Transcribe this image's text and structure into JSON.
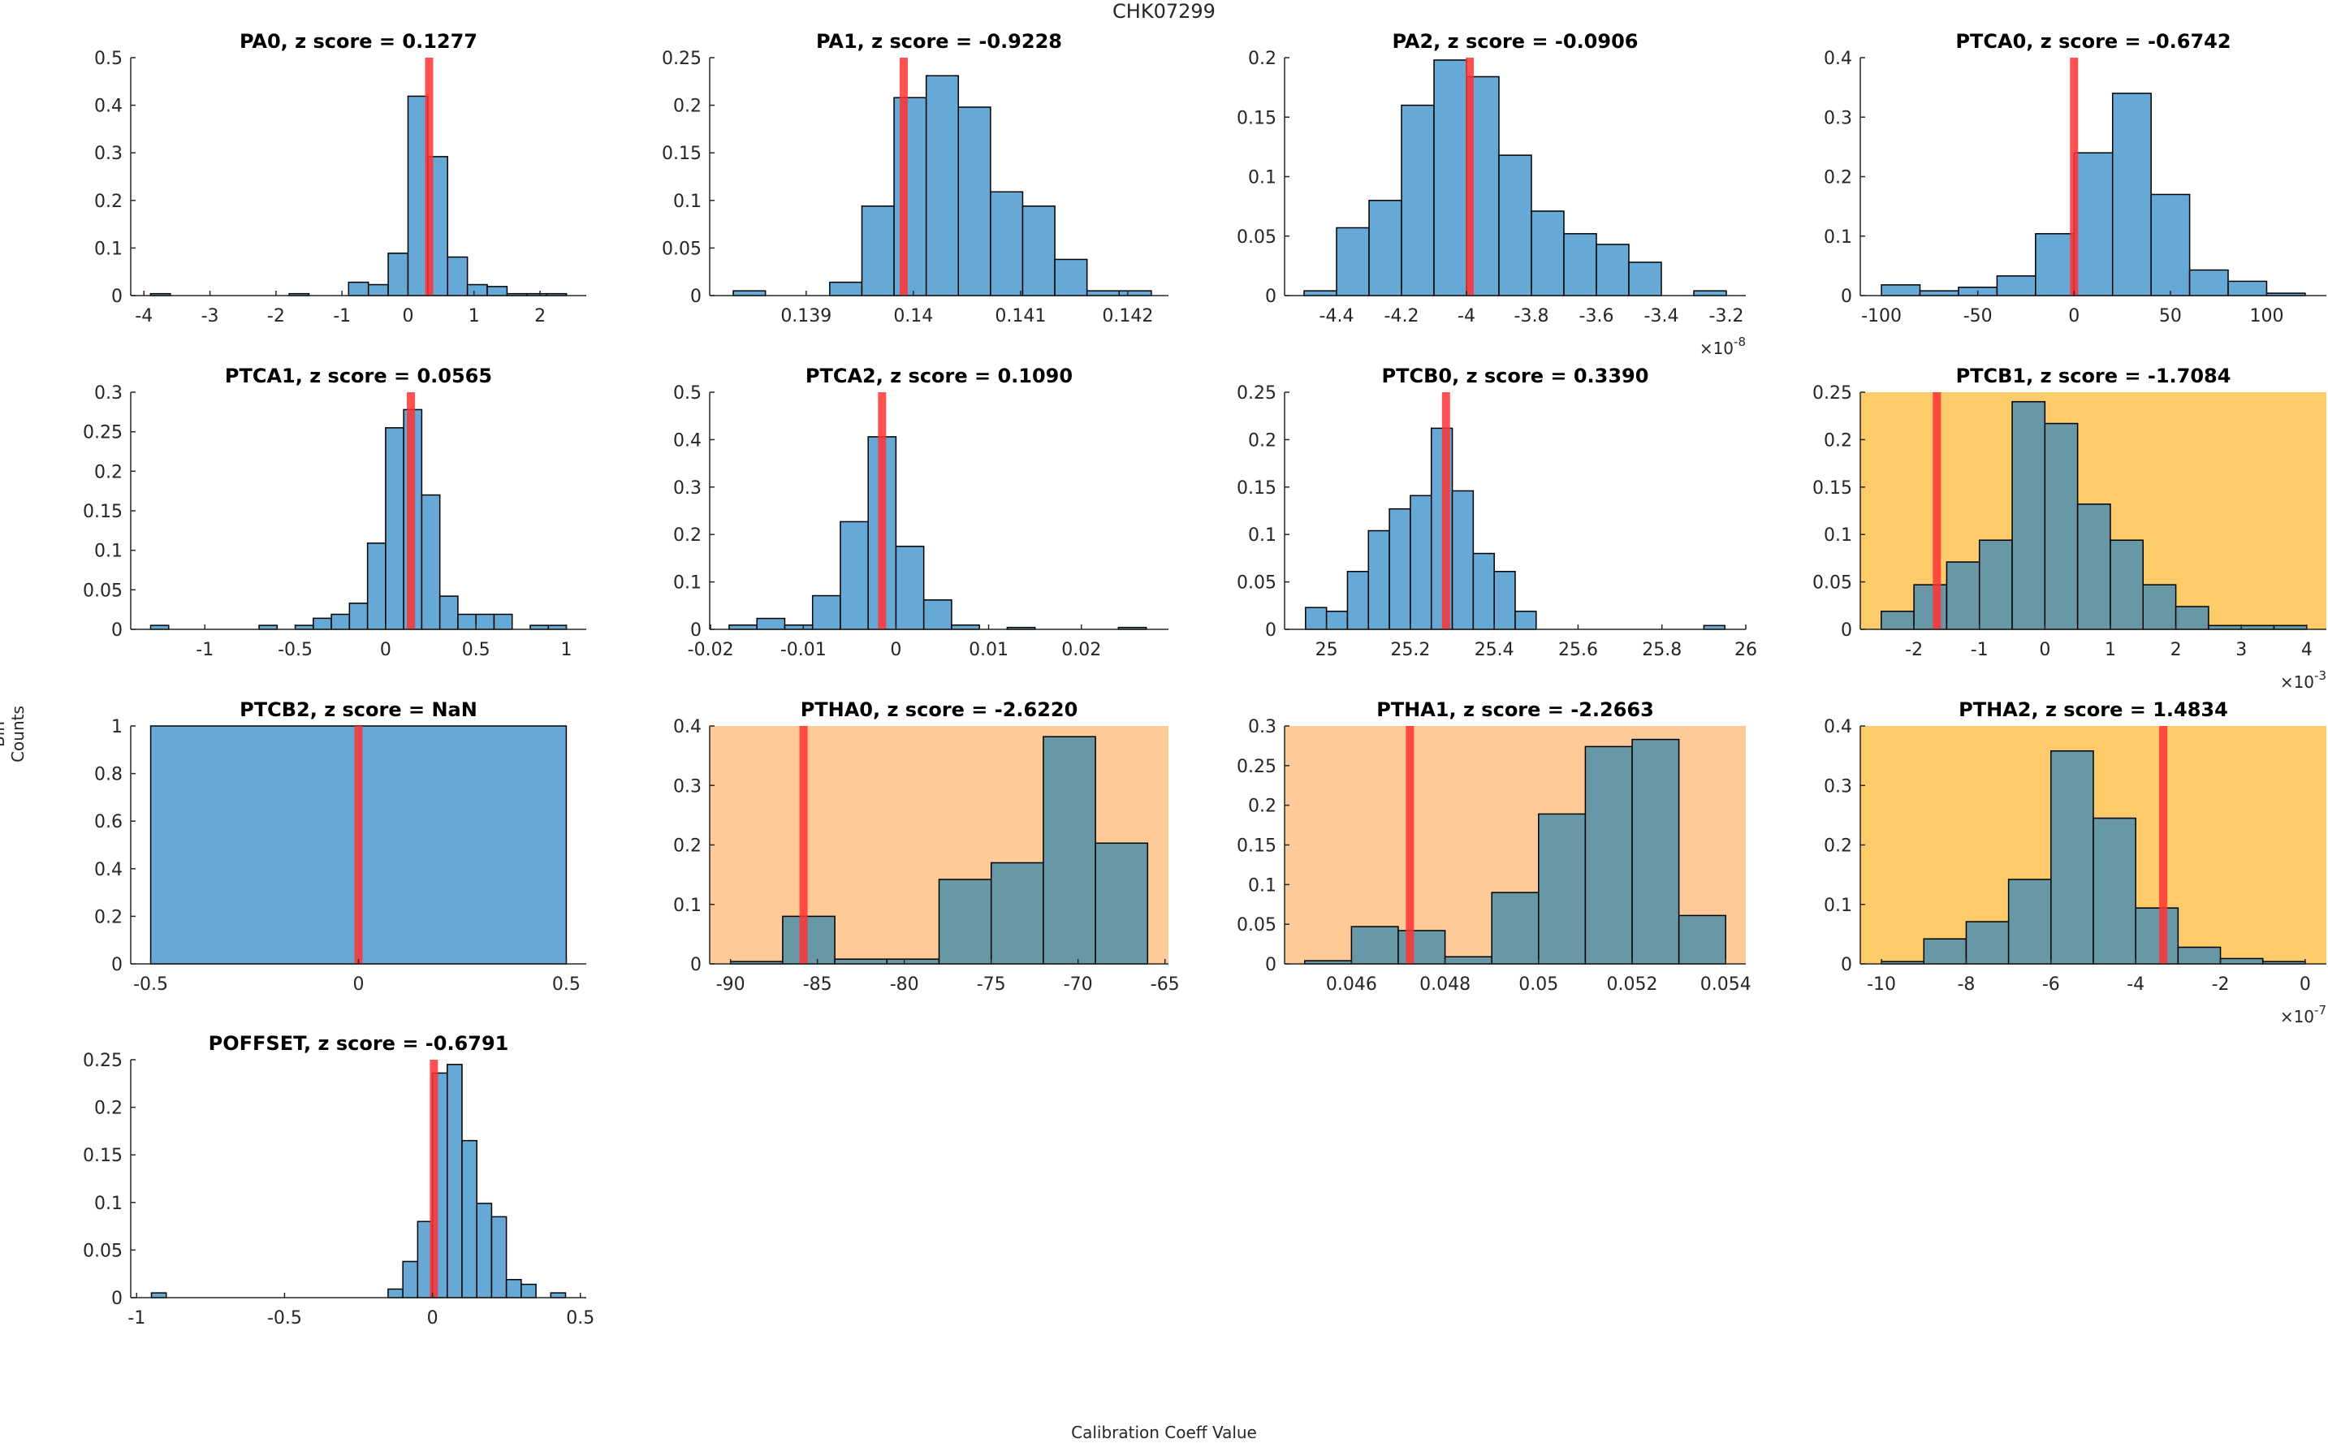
{
  "figure": {
    "suptitle": "CHK07299",
    "xlabel": "Calibration Coeff Value",
    "ylabel": "Bin Counts",
    "colors": {
      "bar_default": "#66a9d6",
      "bar_on_highlight": "#6897a6",
      "bar_edge": "#000000",
      "marker_line": "#ff3333",
      "highlight_orange_light": "#fdca98",
      "highlight_orange_yellow": "#fdcb6a"
    }
  },
  "chart_data": [
    {
      "type": "bar",
      "title": "PA0, z score = 0.1277",
      "param": "PA0",
      "z_score": "0.1277",
      "highlight": "none",
      "bin_edges": [
        -3.9,
        -3.6,
        -3.3,
        -3.0,
        -2.7,
        -2.4,
        -2.1,
        -1.8,
        -1.5,
        -1.2,
        -0.9,
        -0.6,
        -0.3,
        0.0,
        0.3,
        0.6,
        0.9,
        1.2,
        1.5,
        1.8,
        2.1,
        2.4
      ],
      "values": [
        0.004,
        0,
        0,
        0,
        0,
        0,
        0,
        0.004,
        0,
        0,
        0.028,
        0.023,
        0.089,
        0.419,
        0.292,
        0.081,
        0.023,
        0.019,
        0.004,
        0.004,
        0.004
      ],
      "marker": 0.32,
      "xlim": [
        -4.2,
        2.7
      ],
      "ylim": [
        0,
        0.5
      ],
      "xticks": [
        -4,
        -3,
        -2,
        -1,
        0,
        1,
        2
      ],
      "xtick_labels": [
        "-4",
        "-3",
        "-2",
        "-1",
        "0",
        "1",
        "2"
      ],
      "yticks": [
        0,
        0.1,
        0.2,
        0.3,
        0.4,
        0.5
      ],
      "ytick_labels": [
        "0",
        "0.1",
        "0.2",
        "0.3",
        "0.4",
        "0.5"
      ],
      "exponent": ""
    },
    {
      "type": "bar",
      "title": "PA1, z score = -0.9228",
      "param": "PA1",
      "z_score": "-0.9228",
      "highlight": "none",
      "bin_edges": [
        0.13832,
        0.13862,
        0.13892,
        0.13922,
        0.13952,
        0.13982,
        0.14012,
        0.14042,
        0.14072,
        0.14102,
        0.14132,
        0.14162,
        0.14192,
        0.14222
      ],
      "values": [
        0.005,
        0,
        0,
        0.014,
        0.094,
        0.208,
        0.231,
        0.198,
        0.109,
        0.094,
        0.038,
        0.005,
        0.005
      ],
      "marker": 0.13991,
      "xlim": [
        0.1381,
        0.14238
      ],
      "ylim": [
        0,
        0.25
      ],
      "xticks": [
        0.139,
        0.14,
        0.141,
        0.142
      ],
      "xtick_labels": [
        "0.139",
        "0.14",
        "0.141",
        "0.142"
      ],
      "yticks": [
        0,
        0.05,
        0.1,
        0.15,
        0.2,
        0.25
      ],
      "ytick_labels": [
        "0",
        "0.05",
        "0.1",
        "0.15",
        "0.2",
        "0.25"
      ],
      "exponent": ""
    },
    {
      "type": "bar",
      "title": "PA2, z score = -0.0906",
      "param": "PA2",
      "z_score": "-0.0906",
      "highlight": "none",
      "bin_edges": [
        -4.5,
        -4.4,
        -4.3,
        -4.2,
        -4.1,
        -4.0,
        -3.9,
        -3.8,
        -3.7,
        -3.6,
        -3.5,
        -3.4,
        -3.3,
        -3.2
      ],
      "values": [
        0.004,
        0.057,
        0.08,
        0.16,
        0.198,
        0.184,
        0.118,
        0.071,
        0.052,
        0.043,
        0.028,
        0,
        0.004
      ],
      "marker": -3.99,
      "xlim": [
        -4.56,
        -3.14
      ],
      "ylim": [
        0,
        0.2
      ],
      "xticks": [
        -4.4,
        -4.2,
        -4.0,
        -3.8,
        -3.6,
        -3.4,
        -3.2
      ],
      "xtick_labels": [
        "-4.4",
        "-4.2",
        "-4",
        "-3.8",
        "-3.6",
        "-3.4",
        "-3.2"
      ],
      "yticks": [
        0,
        0.05,
        0.1,
        0.15,
        0.2
      ],
      "ytick_labels": [
        "0",
        "0.05",
        "0.1",
        "0.15",
        "0.2"
      ],
      "exponent": "-8"
    },
    {
      "type": "bar",
      "title": "PTCA0, z score = -0.6742",
      "param": "PTCA0",
      "z_score": "-0.6742",
      "highlight": "none",
      "bin_edges": [
        -100,
        -80,
        -60,
        -40,
        -20,
        0,
        20,
        40,
        60,
        80,
        100,
        120
      ],
      "values": [
        0.018,
        0.008,
        0.014,
        0.033,
        0.104,
        0.24,
        0.34,
        0.17,
        0.043,
        0.024,
        0.004
      ],
      "marker": 0,
      "xlim": [
        -111,
        131
      ],
      "ylim": [
        0,
        0.4
      ],
      "xticks": [
        -100,
        -50,
        0,
        50,
        100
      ],
      "xtick_labels": [
        "-100",
        "-50",
        "0",
        "50",
        "100"
      ],
      "yticks": [
        0,
        0.1,
        0.2,
        0.3,
        0.4
      ],
      "ytick_labels": [
        "0",
        "0.1",
        "0.2",
        "0.3",
        "0.4"
      ],
      "exponent": ""
    },
    {
      "type": "bar",
      "title": "PTCA1, z score = 0.0565",
      "param": "PTCA1",
      "z_score": "0.0565",
      "highlight": "none",
      "bin_edges": [
        -1.3,
        -1.2,
        -1.1,
        -1.0,
        -0.9,
        -0.8,
        -0.7,
        -0.6,
        -0.5,
        -0.4,
        -0.3,
        -0.2,
        -0.1,
        0.0,
        0.1,
        0.2,
        0.3,
        0.4,
        0.5,
        0.6,
        0.7,
        0.8,
        0.9,
        1.0
      ],
      "values": [
        0.005,
        0,
        0,
        0,
        0,
        0,
        0.005,
        0,
        0.005,
        0.014,
        0.019,
        0.033,
        0.109,
        0.255,
        0.278,
        0.17,
        0.042,
        0.019,
        0.019,
        0.019,
        0,
        0.005,
        0.005
      ],
      "marker": 0.14,
      "xlim": [
        -1.41,
        1.11
      ],
      "ylim": [
        0,
        0.3
      ],
      "xticks": [
        -1,
        -0.5,
        0,
        0.5,
        1
      ],
      "xtick_labels": [
        "-1",
        "-0.5",
        "0",
        "0.5",
        "1"
      ],
      "yticks": [
        0,
        0.05,
        0.1,
        0.15,
        0.2,
        0.25,
        0.3
      ],
      "ytick_labels": [
        "0",
        "0.05",
        "0.1",
        "0.15",
        "0.2",
        "0.25",
        "0.3"
      ],
      "exponent": ""
    },
    {
      "type": "bar",
      "title": "PTCA2, z score = 0.1090",
      "param": "PTCA2",
      "z_score": "0.1090",
      "highlight": "none",
      "bin_edges": [
        -0.018,
        -0.015,
        -0.012,
        -0.009,
        -0.006,
        -0.003,
        0.0,
        0.003,
        0.006,
        0.009,
        0.012,
        0.015,
        0.018,
        0.021,
        0.024,
        0.027
      ],
      "values": [
        0.009,
        0.023,
        0.009,
        0.071,
        0.227,
        0.406,
        0.175,
        0.062,
        0.009,
        0,
        0.004,
        0,
        0,
        0,
        0.004
      ],
      "marker": -0.0015,
      "xlim": [
        -0.0201,
        0.0294
      ],
      "ylim": [
        0,
        0.5
      ],
      "xticks": [
        -0.02,
        -0.01,
        0,
        0.01,
        0.02
      ],
      "xtick_labels": [
        "-0.02",
        "-0.01",
        "0",
        "0.01",
        "0.02"
      ],
      "yticks": [
        0,
        0.1,
        0.2,
        0.3,
        0.4,
        0.5
      ],
      "ytick_labels": [
        "0",
        "0.1",
        "0.2",
        "0.3",
        "0.4",
        "0.5"
      ],
      "exponent": ""
    },
    {
      "type": "bar",
      "title": "PTCB0, z score = 0.3390",
      "param": "PTCB0",
      "z_score": "0.3390",
      "highlight": "none",
      "bin_edges": [
        24.95,
        25.0,
        25.05,
        25.1,
        25.15,
        25.2,
        25.25,
        25.3,
        25.35,
        25.4,
        25.45,
        25.5,
        25.55,
        25.6,
        25.65,
        25.7,
        25.75,
        25.8,
        25.85,
        25.9,
        25.95
      ],
      "values": [
        0.023,
        0.019,
        0.061,
        0.104,
        0.127,
        0.141,
        0.212,
        0.146,
        0.08,
        0.061,
        0.019,
        0,
        0,
        0,
        0,
        0,
        0,
        0,
        0,
        0.004
      ],
      "marker": 25.285,
      "xlim": [
        24.9,
        26.0
      ],
      "ylim": [
        0,
        0.25
      ],
      "xticks": [
        25,
        25.2,
        25.4,
        25.6,
        25.8,
        26
      ],
      "xtick_labels": [
        "25",
        "25.2",
        "25.4",
        "25.6",
        "25.8",
        "26"
      ],
      "yticks": [
        0,
        0.05,
        0.1,
        0.15,
        0.2,
        0.25
      ],
      "ytick_labels": [
        "0",
        "0.05",
        "0.1",
        "0.15",
        "0.2",
        "0.25"
      ],
      "exponent": ""
    },
    {
      "type": "bar",
      "title": "PTCB1, z score = -1.7084",
      "param": "PTCB1",
      "z_score": "-1.7084",
      "highlight": "orange_yellow",
      "bin_edges": [
        -2.5,
        -2.0,
        -1.5,
        -1.0,
        -0.5,
        0.0,
        0.5,
        1.0,
        1.5,
        2.0,
        2.5,
        3.0,
        3.5,
        4.0
      ],
      "values": [
        0.019,
        0.047,
        0.071,
        0.094,
        0.24,
        0.217,
        0.132,
        0.094,
        0.047,
        0.024,
        0.004,
        0.004,
        0.004
      ],
      "marker": -1.65,
      "xlim": [
        -2.82,
        4.3
      ],
      "ylim": [
        0,
        0.25
      ],
      "xticks": [
        -2,
        -1,
        0,
        1,
        2,
        3,
        4
      ],
      "xtick_labels": [
        "-2",
        "-1",
        "0",
        "1",
        "2",
        "3",
        "4"
      ],
      "yticks": [
        0,
        0.05,
        0.1,
        0.15,
        0.2,
        0.25
      ],
      "ytick_labels": [
        "0",
        "0.05",
        "0.1",
        "0.15",
        "0.2",
        "0.25"
      ],
      "exponent": "-3"
    },
    {
      "type": "bar",
      "title": "PTCB2, z score = NaN",
      "param": "PTCB2",
      "z_score": "NaN",
      "highlight": "none",
      "bin_edges": [
        -0.5,
        0.5
      ],
      "values": [
        1
      ],
      "marker": 0,
      "xlim": [
        -0.548,
        0.548
      ],
      "ylim": [
        0,
        1
      ],
      "xticks": [
        -0.5,
        0,
        0.5
      ],
      "xtick_labels": [
        "-0.5",
        "0",
        "0.5"
      ],
      "yticks": [
        0,
        0.2,
        0.4,
        0.6,
        0.8,
        1
      ],
      "ytick_labels": [
        "0",
        "0.2",
        "0.4",
        "0.6",
        "0.8",
        "1"
      ],
      "exponent": ""
    },
    {
      "type": "bar",
      "title": "PTHA0, z score = -2.6220",
      "param": "PTHA0",
      "z_score": "-2.6220",
      "highlight": "orange_light",
      "bin_edges": [
        -90,
        -87,
        -84,
        -81,
        -78,
        -75,
        -72,
        -69,
        -66
      ],
      "values": [
        0.004,
        0.08,
        0.008,
        0.008,
        0.142,
        0.17,
        0.382,
        0.203
      ],
      "marker": -85.8,
      "xlim": [
        -91.2,
        -64.8
      ],
      "ylim": [
        0,
        0.4
      ],
      "xticks": [
        -90,
        -85,
        -80,
        -75,
        -70,
        -65
      ],
      "xtick_labels": [
        "-90",
        "-85",
        "-80",
        "-75",
        "-70",
        "-65"
      ],
      "yticks": [
        0,
        0.1,
        0.2,
        0.3,
        0.4
      ],
      "ytick_labels": [
        "0",
        "0.1",
        "0.2",
        "0.3",
        "0.4"
      ],
      "exponent": ""
    },
    {
      "type": "bar",
      "title": "PTHA1, z score = -2.2663",
      "param": "PTHA1",
      "z_score": "-2.2663",
      "highlight": "orange_light",
      "bin_edges": [
        0.045,
        0.046,
        0.047,
        0.048,
        0.049,
        0.05,
        0.051,
        0.052,
        0.053,
        0.054
      ],
      "values": [
        0.004,
        0.047,
        0.042,
        0.009,
        0.09,
        0.189,
        0.274,
        0.283,
        0.061
      ],
      "marker": 0.04725,
      "xlim": [
        0.04457,
        0.05443
      ],
      "ylim": [
        0,
        0.3
      ],
      "xticks": [
        0.046,
        0.048,
        0.05,
        0.052,
        0.054
      ],
      "xtick_labels": [
        "0.046",
        "0.048",
        "0.05",
        "0.052",
        "0.054"
      ],
      "yticks": [
        0,
        0.05,
        0.1,
        0.15,
        0.2,
        0.25,
        0.3
      ],
      "ytick_labels": [
        "0",
        "0.05",
        "0.1",
        "0.15",
        "0.2",
        "0.25",
        "0.3"
      ],
      "exponent": ""
    },
    {
      "type": "bar",
      "title": "PTHA2, z score = 1.4834",
      "param": "PTHA2",
      "z_score": "1.4834",
      "highlight": "orange_yellow",
      "bin_edges": [
        -10,
        -9,
        -8,
        -7,
        -6,
        -5,
        -4,
        -3,
        -2,
        -1,
        0
      ],
      "values": [
        0.004,
        0.042,
        0.071,
        0.142,
        0.358,
        0.245,
        0.094,
        0.028,
        0.009,
        0.004
      ],
      "marker": -3.35,
      "xlim": [
        -10.5,
        0.5
      ],
      "ylim": [
        0,
        0.4
      ],
      "xticks": [
        -10,
        -8,
        -6,
        -4,
        -2,
        0
      ],
      "xtick_labels": [
        "-10",
        "-8",
        "-6",
        "-4",
        "-2",
        "0"
      ],
      "yticks": [
        0,
        0.1,
        0.2,
        0.3,
        0.4
      ],
      "ytick_labels": [
        "0",
        "0.1",
        "0.2",
        "0.3",
        "0.4"
      ],
      "exponent": "-7"
    },
    {
      "type": "bar",
      "title": "POFFSET, z score = -0.6791",
      "param": "POFFSET",
      "z_score": "-0.6791",
      "highlight": "none",
      "bin_edges": [
        -0.95,
        -0.9,
        -0.85,
        -0.8,
        -0.75,
        -0.7,
        -0.65,
        -0.6,
        -0.55,
        -0.5,
        -0.45,
        -0.4,
        -0.35,
        -0.3,
        -0.25,
        -0.2,
        -0.15,
        -0.1,
        -0.05,
        0.0,
        0.05,
        0.1,
        0.15,
        0.2,
        0.25,
        0.3,
        0.35,
        0.4,
        0.45
      ],
      "values": [
        0.005,
        0,
        0,
        0,
        0,
        0,
        0,
        0,
        0,
        0,
        0,
        0,
        0,
        0,
        0,
        0,
        0.009,
        0.038,
        0.08,
        0.236,
        0.245,
        0.165,
        0.099,
        0.085,
        0.019,
        0.014,
        0,
        0.005
      ],
      "marker": 0.005,
      "xlim": [
        -1.02,
        0.52
      ],
      "ylim": [
        0,
        0.25
      ],
      "xticks": [
        -1,
        -0.5,
        0,
        0.5
      ],
      "xtick_labels": [
        "-1",
        "-0.5",
        "0",
        "0.5"
      ],
      "yticks": [
        0,
        0.05,
        0.1,
        0.15,
        0.2,
        0.25
      ],
      "ytick_labels": [
        "0",
        "0.05",
        "0.1",
        "0.15",
        "0.2",
        "0.25"
      ],
      "exponent": ""
    }
  ]
}
